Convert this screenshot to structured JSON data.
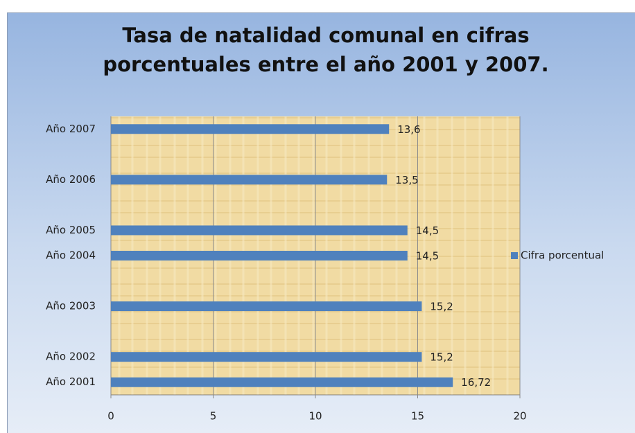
{
  "chart_data": {
    "type": "bar",
    "orientation": "horizontal",
    "title": "Tasa de natalidad comunal en cifras porcentuales entre el año 2001 y 2007.",
    "categories": [
      "Año 2001",
      "Año 2002",
      null,
      "Año 2003",
      null,
      "Año 2004",
      "Año 2005",
      null,
      "Año 2006",
      null,
      "Año 2007"
    ],
    "series": [
      {
        "name": "Cifra porcentual",
        "color": "#4f81bd",
        "values": [
          16.72,
          15.2,
          null,
          15.2,
          null,
          14.5,
          14.5,
          null,
          13.5,
          null,
          13.6
        ],
        "value_labels": [
          "16,72",
          "15,2",
          null,
          "15,2",
          null,
          "14,5",
          "14,5",
          null,
          "13,5",
          null,
          "13,6"
        ]
      }
    ],
    "xlim": [
      0,
      20
    ],
    "xticks": [
      0,
      5,
      10,
      15,
      20
    ],
    "grid": true,
    "legend": "right"
  }
}
